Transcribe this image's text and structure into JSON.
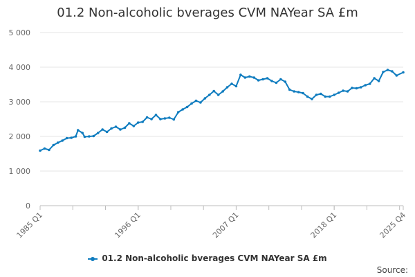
{
  "chart_data": {
    "type": "line",
    "title": "01.2 Non-alcoholic bverages CVM NAYear SA £m",
    "xlabel": "",
    "ylabel": "",
    "x_ticks": [
      "1985 Q1",
      "1996 Q1",
      "2007 Q1",
      "2018 Q1",
      "2025 Q4"
    ],
    "y_ticks": [
      "0",
      "1 000",
      "2 000",
      "3 000",
      "4 000",
      "5 000"
    ],
    "ylim": [
      0,
      5000
    ],
    "x_range": [
      1985.0,
      2025.75
    ],
    "grid": true,
    "legend_position": "bottom",
    "color": "#0f7cbf",
    "series": [
      {
        "name": "01.2 Non-alcoholic bverages CVM NAYear SA £m",
        "points": [
          [
            1985.0,
            1590
          ],
          [
            1985.5,
            1650
          ],
          [
            1986.0,
            1610
          ],
          [
            1986.5,
            1750
          ],
          [
            1987.0,
            1820
          ],
          [
            1987.5,
            1880
          ],
          [
            1988.0,
            1950
          ],
          [
            1988.5,
            1960
          ],
          [
            1989.0,
            2000
          ],
          [
            1989.25,
            2180
          ],
          [
            1989.75,
            2100
          ],
          [
            1990.0,
            1990
          ],
          [
            1990.5,
            2000
          ],
          [
            1991.0,
            2010
          ],
          [
            1991.5,
            2100
          ],
          [
            1992.0,
            2200
          ],
          [
            1992.5,
            2130
          ],
          [
            1993.0,
            2230
          ],
          [
            1993.5,
            2280
          ],
          [
            1994.0,
            2200
          ],
          [
            1994.5,
            2250
          ],
          [
            1995.0,
            2380
          ],
          [
            1995.5,
            2300
          ],
          [
            1996.0,
            2400
          ],
          [
            1996.5,
            2420
          ],
          [
            1997.0,
            2550
          ],
          [
            1997.5,
            2500
          ],
          [
            1998.0,
            2620
          ],
          [
            1998.5,
            2500
          ],
          [
            1999.0,
            2520
          ],
          [
            1999.5,
            2540
          ],
          [
            2000.0,
            2490
          ],
          [
            2000.5,
            2700
          ],
          [
            2001.0,
            2780
          ],
          [
            2001.5,
            2850
          ],
          [
            2002.0,
            2950
          ],
          [
            2002.5,
            3030
          ],
          [
            2003.0,
            2980
          ],
          [
            2003.5,
            3100
          ],
          [
            2004.0,
            3200
          ],
          [
            2004.5,
            3310
          ],
          [
            2005.0,
            3200
          ],
          [
            2005.5,
            3300
          ],
          [
            2006.0,
            3420
          ],
          [
            2006.5,
            3520
          ],
          [
            2007.0,
            3450
          ],
          [
            2007.5,
            3780
          ],
          [
            2008.0,
            3700
          ],
          [
            2008.5,
            3730
          ],
          [
            2009.0,
            3700
          ],
          [
            2009.5,
            3620
          ],
          [
            2010.0,
            3650
          ],
          [
            2010.5,
            3680
          ],
          [
            2011.0,
            3600
          ],
          [
            2011.5,
            3550
          ],
          [
            2012.0,
            3650
          ],
          [
            2012.5,
            3580
          ],
          [
            2013.0,
            3350
          ],
          [
            2013.5,
            3300
          ],
          [
            2014.0,
            3280
          ],
          [
            2014.5,
            3250
          ],
          [
            2015.0,
            3150
          ],
          [
            2015.5,
            3080
          ],
          [
            2016.0,
            3200
          ],
          [
            2016.5,
            3230
          ],
          [
            2017.0,
            3150
          ],
          [
            2017.5,
            3150
          ],
          [
            2018.0,
            3200
          ],
          [
            2018.5,
            3260
          ],
          [
            2019.0,
            3320
          ],
          [
            2019.5,
            3300
          ],
          [
            2020.0,
            3400
          ],
          [
            2020.5,
            3390
          ],
          [
            2021.0,
            3420
          ],
          [
            2021.5,
            3480
          ],
          [
            2022.0,
            3520
          ],
          [
            2022.5,
            3680
          ],
          [
            2023.0,
            3600
          ],
          [
            2023.5,
            3860
          ],
          [
            2024.0,
            3920
          ],
          [
            2024.5,
            3880
          ],
          [
            2025.0,
            3760
          ],
          [
            2025.75,
            3850
          ]
        ]
      }
    ],
    "source_label": "Source:"
  }
}
